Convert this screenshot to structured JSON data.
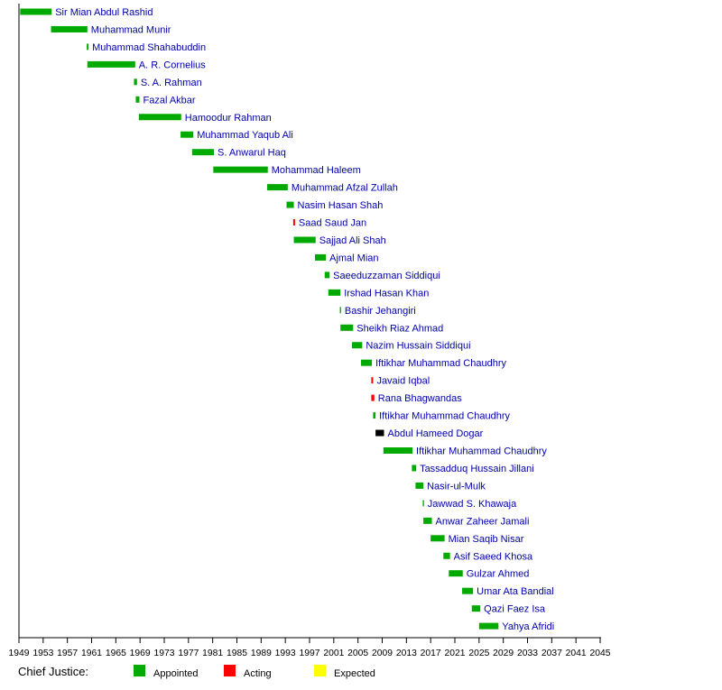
{
  "chart_data": {
    "type": "timeline",
    "xlim": [
      1949,
      2045
    ],
    "x_ticks": [
      1949,
      1953,
      1957,
      1961,
      1965,
      1969,
      1973,
      1977,
      1981,
      1985,
      1989,
      1993,
      1997,
      2001,
      2005,
      2009,
      2013,
      2017,
      2021,
      2025,
      2029,
      2033,
      2037,
      2041,
      2045
    ],
    "grid": false,
    "legend": {
      "title": "Chief Justice:",
      "placement": "bottom-left",
      "items": [
        {
          "label": "Appointed",
          "color": "#00aa00"
        },
        {
          "label": "Acting",
          "color": "#ff0000"
        },
        {
          "label": "Expected",
          "color": "#ffff00"
        }
      ]
    },
    "colors": {
      "appointed": "#00aa00",
      "acting": "#ff0000",
      "other": "#000000",
      "label": "#0000aa"
    },
    "series": [
      {
        "name": "Sir Mian Abdul Rashid",
        "start": 1949.2,
        "end": 1954.4,
        "status": "appointed"
      },
      {
        "name": "Muhammad Munir",
        "start": 1954.3,
        "end": 1960.3,
        "status": "appointed"
      },
      {
        "name": "Muhammad Shahabuddin",
        "start": 1960.2,
        "end": 1960.5,
        "status": "appointed"
      },
      {
        "name": "A. R. Cornelius",
        "start": 1960.3,
        "end": 1968.2,
        "status": "appointed"
      },
      {
        "name": "S. A. Rahman",
        "start": 1968.0,
        "end": 1968.5,
        "status": "appointed"
      },
      {
        "name": "Fazal Akbar",
        "start": 1968.3,
        "end": 1968.9,
        "status": "appointed"
      },
      {
        "name": "Hamoodur Rahman",
        "start": 1968.8,
        "end": 1975.8,
        "status": "appointed"
      },
      {
        "name": "Muhammad Yaqub Ali",
        "start": 1975.7,
        "end": 1977.8,
        "status": "appointed"
      },
      {
        "name": "S. Anwarul Haq",
        "start": 1977.6,
        "end": 1981.2,
        "status": "appointed"
      },
      {
        "name": "Mohammad Haleem",
        "start": 1981.1,
        "end": 1990.1,
        "status": "appointed"
      },
      {
        "name": "Muhammad Afzal Zullah",
        "start": 1990.0,
        "end": 1993.4,
        "status": "appointed"
      },
      {
        "name": "Nasim Hasan Shah",
        "start": 1993.2,
        "end": 1994.4,
        "status": "appointed"
      },
      {
        "name": "Saad Saud Jan",
        "start": 1994.3,
        "end": 1994.6,
        "status": "acting"
      },
      {
        "name": "Sajjad Ali Shah",
        "start": 1994.4,
        "end": 1998.0,
        "status": "appointed"
      },
      {
        "name": "Ajmal Mian",
        "start": 1997.9,
        "end": 1999.7,
        "status": "appointed"
      },
      {
        "name": "Saeeduzzaman Siddiqui",
        "start": 1999.5,
        "end": 2000.3,
        "status": "appointed"
      },
      {
        "name": "Irshad Hasan Khan",
        "start": 2000.1,
        "end": 2002.1,
        "status": "appointed"
      },
      {
        "name": "Bashir Jehangiri",
        "start": 2002.0,
        "end": 2002.2,
        "status": "appointed"
      },
      {
        "name": "Sheikh Riaz Ahmad",
        "start": 2002.1,
        "end": 2004.2,
        "status": "appointed"
      },
      {
        "name": "Nazim Hussain Siddiqui",
        "start": 2004.0,
        "end": 2005.7,
        "status": "appointed"
      },
      {
        "name": "Iftikhar Muhammad Chaudhry",
        "start": 2005.5,
        "end": 2007.3,
        "status": "appointed"
      },
      {
        "name": "Javaid Iqbal",
        "start": 2007.2,
        "end": 2007.5,
        "status": "acting"
      },
      {
        "name": "Rana Bhagwandas",
        "start": 2007.2,
        "end": 2007.7,
        "status": "acting"
      },
      {
        "name": "Iftikhar Muhammad Chaudhry",
        "start": 2007.5,
        "end": 2007.9,
        "status": "appointed"
      },
      {
        "name": "Abdul Hameed Dogar",
        "start": 2007.9,
        "end": 2009.3,
        "status": "other"
      },
      {
        "name": "Iftikhar Muhammad Chaudhry",
        "start": 2009.2,
        "end": 2014.0,
        "status": "appointed"
      },
      {
        "name": "Tassadduq Hussain Jillani",
        "start": 2013.9,
        "end": 2014.6,
        "status": "appointed"
      },
      {
        "name": "Nasir-ul-Mulk",
        "start": 2014.5,
        "end": 2015.8,
        "status": "appointed"
      },
      {
        "name": "Jawwad S. Khawaja",
        "start": 2015.7,
        "end": 2015.9,
        "status": "appointed"
      },
      {
        "name": "Anwar Zaheer Jamali",
        "start": 2015.8,
        "end": 2017.2,
        "status": "appointed"
      },
      {
        "name": "Mian Saqib Nisar",
        "start": 2017.0,
        "end": 2019.3,
        "status": "appointed"
      },
      {
        "name": "Asif Saeed Khosa",
        "start": 2019.1,
        "end": 2020.2,
        "status": "appointed"
      },
      {
        "name": "Gulzar Ahmed",
        "start": 2020.0,
        "end": 2022.3,
        "status": "appointed"
      },
      {
        "name": "Umar Ata Bandial",
        "start": 2022.2,
        "end": 2024.0,
        "status": "appointed"
      },
      {
        "name": "Qazi Faez Isa",
        "start": 2023.8,
        "end": 2025.2,
        "status": "appointed"
      },
      {
        "name": "Yahya Afridi",
        "start": 2025.0,
        "end": 2028.2,
        "status": "appointed"
      }
    ]
  }
}
